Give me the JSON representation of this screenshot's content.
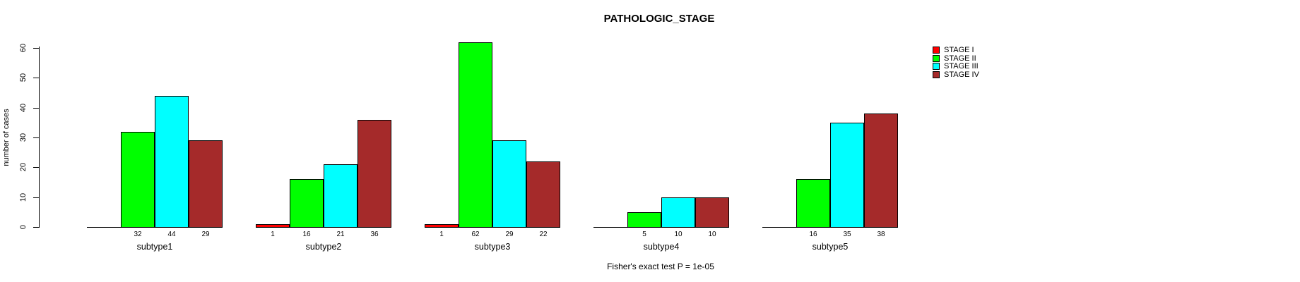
{
  "chart_data": {
    "type": "bar",
    "title": "PATHOLOGIC_STAGE",
    "ylabel": "number of cases",
    "xlabel": "",
    "categories": [
      "subtype1",
      "subtype2",
      "subtype3",
      "subtype4",
      "subtype5"
    ],
    "series": [
      {
        "name": "STAGE I",
        "color": "#FF0000",
        "values": [
          0,
          1,
          1,
          0,
          0
        ]
      },
      {
        "name": "STAGE II",
        "color": "#00FF00",
        "values": [
          32,
          16,
          62,
          5,
          16
        ]
      },
      {
        "name": "STAGE III",
        "color": "#00FFFF",
        "values": [
          44,
          21,
          29,
          10,
          35
        ]
      },
      {
        "name": "STAGE IV",
        "color": "#A52A2A",
        "values": [
          29,
          36,
          22,
          10,
          38
        ]
      }
    ],
    "value_labels": {
      "subtype1": [
        null,
        32,
        44,
        29
      ],
      "subtype2": [
        1,
        16,
        21,
        36
      ],
      "subtype3": [
        1,
        62,
        29,
        22
      ],
      "subtype4": [
        null,
        5,
        10,
        10
      ],
      "subtype5": [
        null,
        16,
        35,
        38
      ]
    },
    "yticks": [
      0,
      10,
      20,
      30,
      40,
      50,
      60
    ],
    "ylim": [
      0,
      60
    ],
    "grid": false,
    "legend_position": "right",
    "caption": "Fisher's exact test P = 1e-05"
  }
}
